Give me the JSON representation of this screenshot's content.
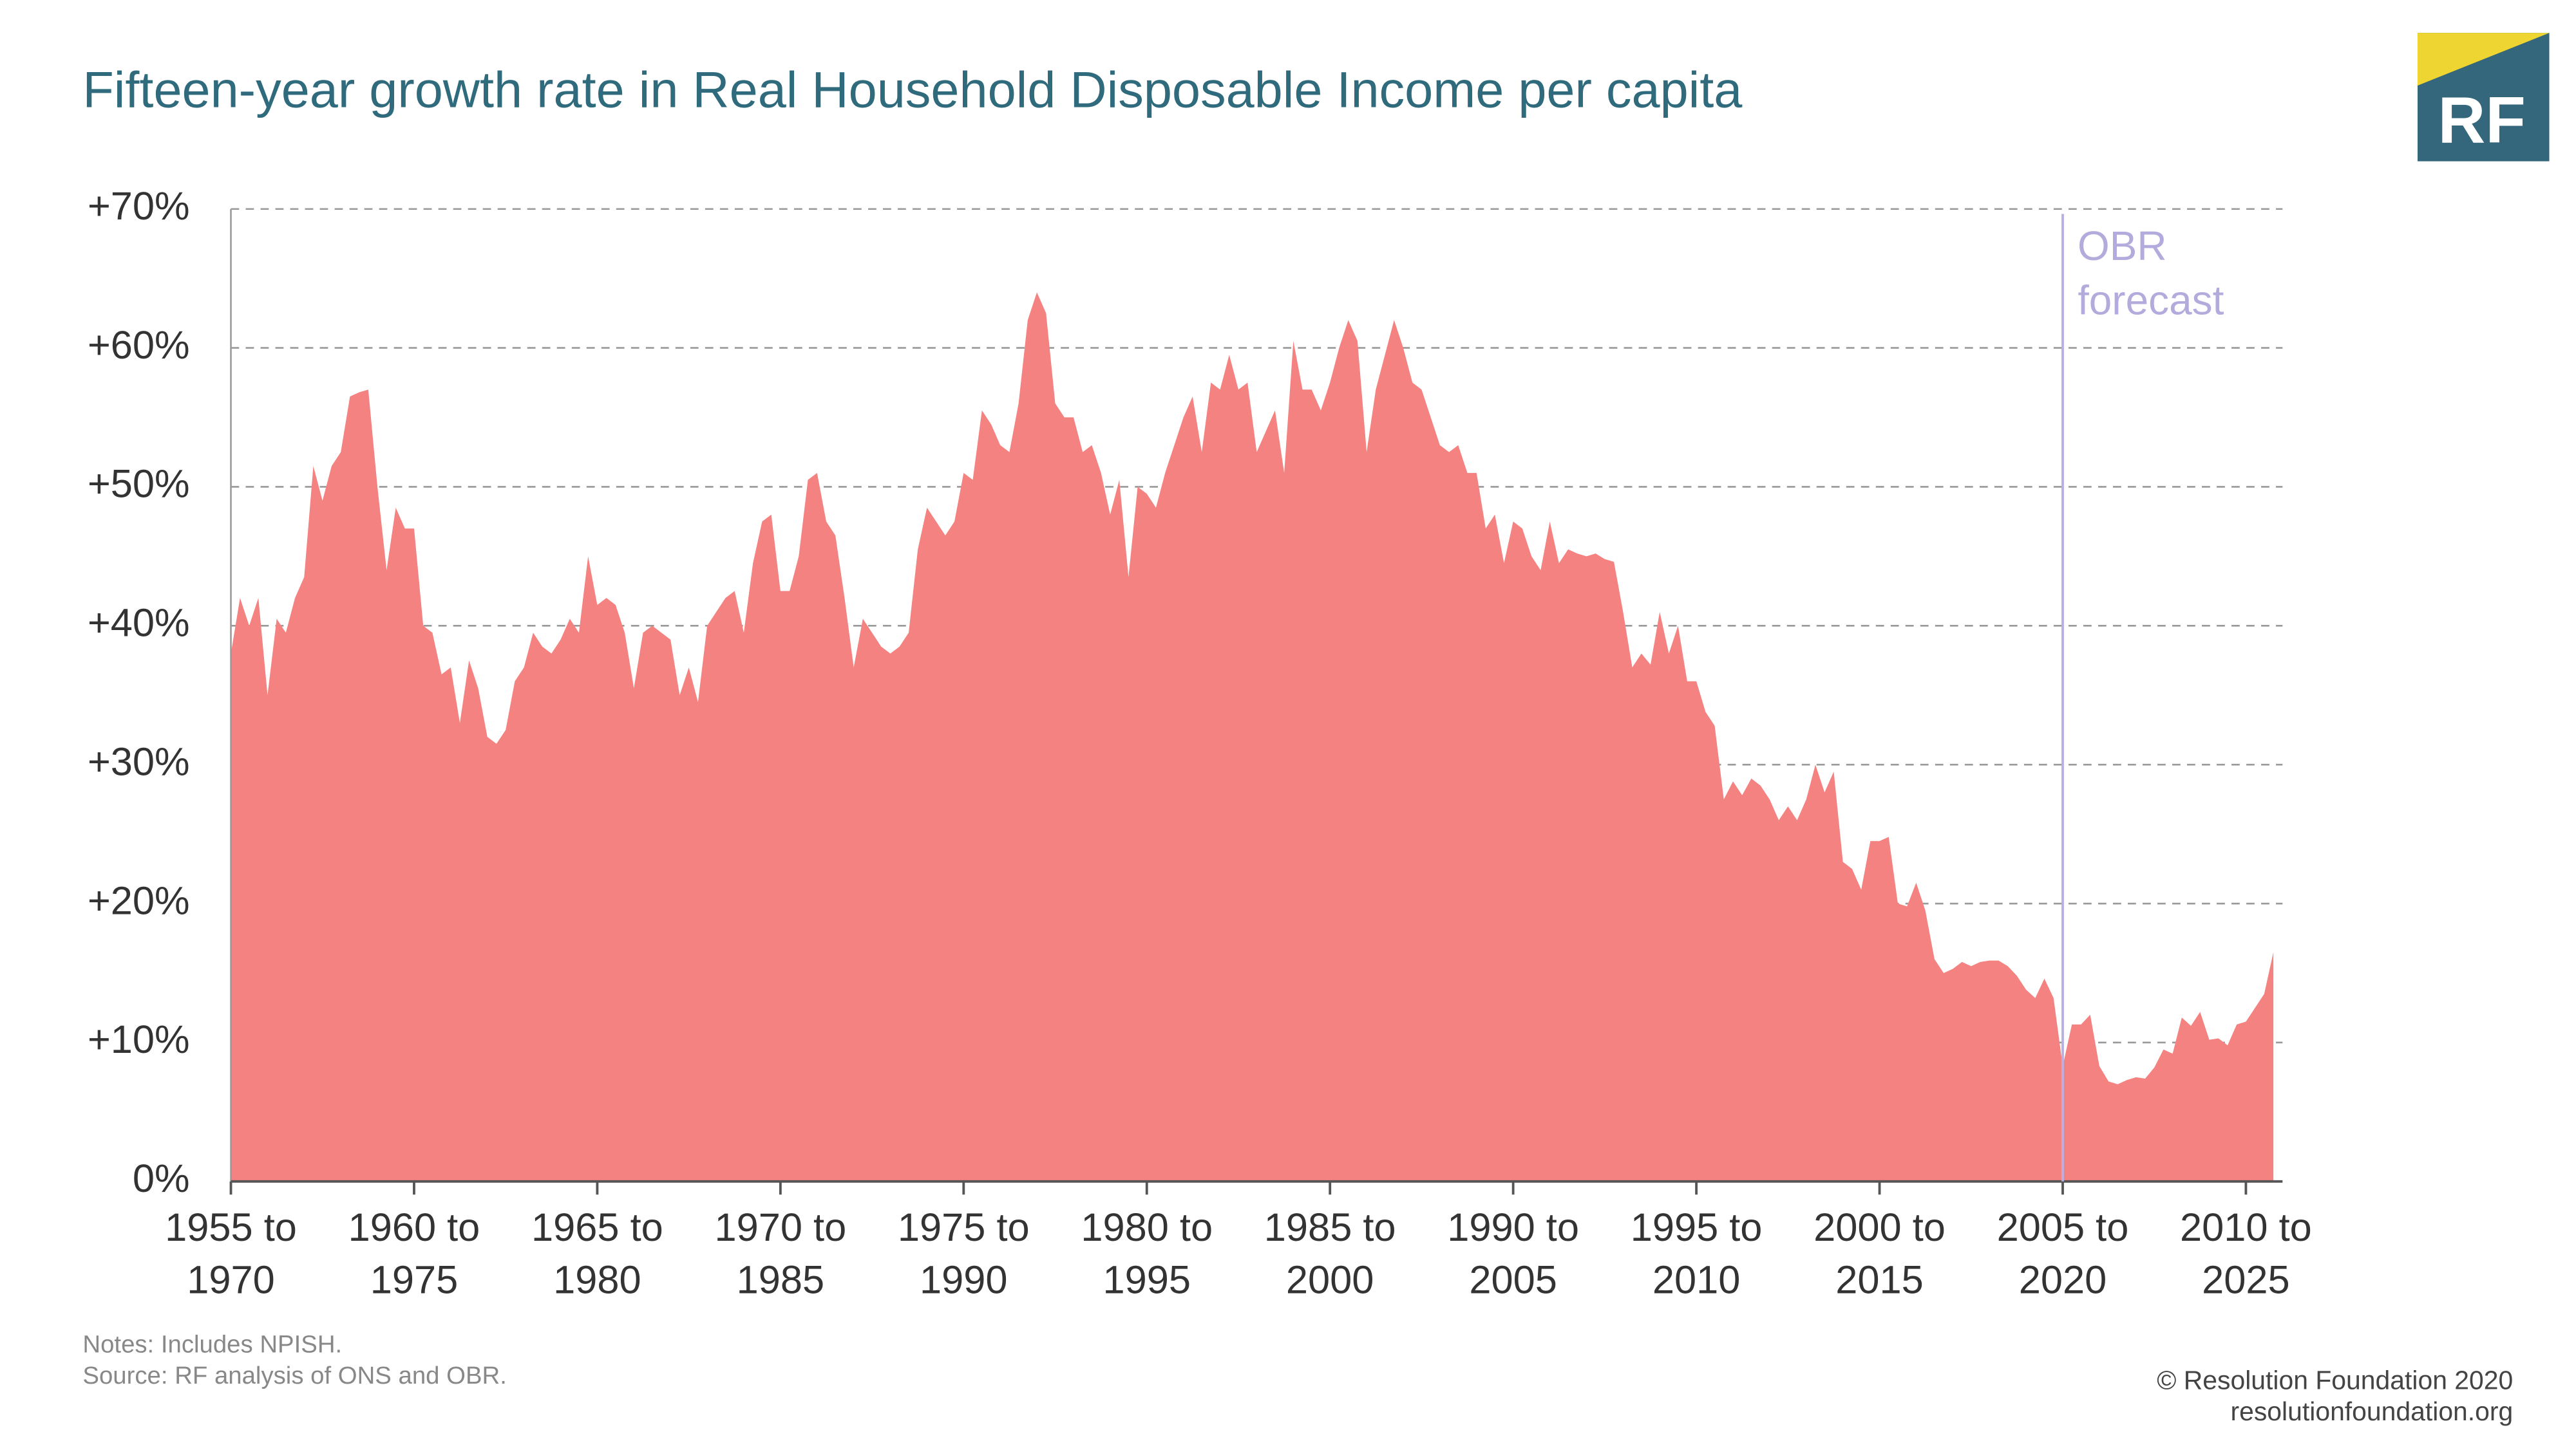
{
  "chart_data": {
    "type": "area",
    "title": "Fifteen-year growth rate in Real Household Disposable Income per capita",
    "notes": "Notes: Includes NPISH.",
    "source": "Source: RF analysis of ONS and OBR.",
    "copyright": "© Resolution Foundation 2020",
    "website": "resolutionfoundation.org",
    "logo": "RF",
    "annotation": "OBR forecast",
    "forecast_x": 2005,
    "color": "#f38280",
    "grid": true,
    "xlim": [
      1955,
      2011
    ],
    "ylim": [
      0,
      70
    ],
    "yticks": [
      {
        "value": 0,
        "label": "0%"
      },
      {
        "value": 10,
        "label": "+10%"
      },
      {
        "value": 20,
        "label": "+20%"
      },
      {
        "value": 30,
        "label": "+30%"
      },
      {
        "value": 40,
        "label": "+40%"
      },
      {
        "value": 50,
        "label": "+50%"
      },
      {
        "value": 60,
        "label": "+60%"
      },
      {
        "value": 70,
        "label": "+70%"
      }
    ],
    "xticks": [
      {
        "value": 1955,
        "label": "1955 to 1970"
      },
      {
        "value": 1960,
        "label": "1960 to 1975"
      },
      {
        "value": 1965,
        "label": "1965 to 1980"
      },
      {
        "value": 1970,
        "label": "1970 to 1985"
      },
      {
        "value": 1975,
        "label": "1975 to 1990"
      },
      {
        "value": 1980,
        "label": "1980 to 1995"
      },
      {
        "value": 1985,
        "label": "1985 to 2000"
      },
      {
        "value": 1990,
        "label": "1990 to 2005"
      },
      {
        "value": 1995,
        "label": "1995 to 2010"
      },
      {
        "value": 2000,
        "label": "2000 to 2015"
      },
      {
        "value": 2005,
        "label": "2005 to 2020"
      },
      {
        "value": 2010,
        "label": "2010 to 2025"
      }
    ],
    "x": [
      1955,
      1955.25,
      1955.5,
      1955.75,
      1956,
      1956.25,
      1956.5,
      1956.75,
      1957,
      1957.25,
      1957.5,
      1957.75,
      1958,
      1958.25,
      1958.5,
      1958.75,
      1959,
      1959.25,
      1959.5,
      1959.75,
      1960,
      1960.25,
      1960.5,
      1960.75,
      1961,
      1961.25,
      1961.5,
      1961.75,
      1962,
      1962.25,
      1962.5,
      1962.75,
      1963,
      1963.25,
      1963.5,
      1963.75,
      1964,
      1964.25,
      1964.5,
      1964.75,
      1965,
      1965.25,
      1965.5,
      1965.75,
      1966,
      1966.25,
      1966.5,
      1966.75,
      1967,
      1967.25,
      1967.5,
      1967.75,
      1968,
      1968.25,
      1968.5,
      1968.75,
      1969,
      1969.25,
      1969.5,
      1969.75,
      1970,
      1970.25,
      1970.5,
      1970.75,
      1971,
      1971.25,
      1971.5,
      1971.75,
      1972,
      1972.25,
      1972.5,
      1972.75,
      1973,
      1973.25,
      1973.5,
      1973.75,
      1974,
      1974.25,
      1974.5,
      1974.75,
      1975,
      1975.25,
      1975.5,
      1975.75,
      1976,
      1976.25,
      1976.5,
      1976.75,
      1977,
      1977.25,
      1977.5,
      1977.75,
      1978,
      1978.25,
      1978.5,
      1978.75,
      1979,
      1979.25,
      1979.5,
      1979.75,
      1980,
      1980.25,
      1980.5,
      1980.75,
      1981,
      1981.25,
      1981.5,
      1981.75,
      1982,
      1982.25,
      1982.5,
      1982.75,
      1983,
      1983.25,
      1983.5,
      1983.75,
      1984,
      1984.25,
      1984.5,
      1984.75,
      1985,
      1985.25,
      1985.5,
      1985.75,
      1986,
      1986.25,
      1986.5,
      1986.75,
      1987,
      1987.25,
      1987.5,
      1987.75,
      1988,
      1988.25,
      1988.5,
      1988.75,
      1989,
      1989.25,
      1989.5,
      1989.75,
      1990,
      1990.25,
      1990.5,
      1990.75,
      1991,
      1991.25,
      1991.5,
      1991.75,
      1992,
      1992.25,
      1992.5,
      1992.75,
      1993,
      1993.25,
      1993.5,
      1993.75,
      1994,
      1994.25,
      1994.5,
      1994.75,
      1995,
      1995.25,
      1995.5,
      1995.75,
      1996,
      1996.25,
      1996.5,
      1996.75,
      1997,
      1997.25,
      1997.5,
      1997.75,
      1998,
      1998.25,
      1998.5,
      1998.75,
      1999,
      1999.25,
      1999.5,
      1999.75,
      2000,
      2000.25,
      2000.5,
      2000.75,
      2001,
      2001.25,
      2001.5,
      2001.75,
      2002,
      2002.25,
      2002.5,
      2002.75,
      2003,
      2003.25,
      2003.5,
      2003.75,
      2004,
      2004.25,
      2004.5,
      2004.75,
      2005,
      2005.25,
      2005.5,
      2005.75,
      2006,
      2006.25,
      2006.5,
      2006.75,
      2007,
      2007.25,
      2007.5,
      2007.75,
      2008,
      2008.25,
      2008.5,
      2008.75,
      2009,
      2009.25,
      2009.5,
      2009.75,
      2010,
      2010.25,
      2010.5,
      2010.75
    ],
    "values": [
      38,
      42,
      40,
      42,
      35,
      40.5,
      39.5,
      42,
      43.5,
      51.5,
      49,
      51.5,
      52.5,
      56.5,
      56.8,
      57,
      50,
      44,
      48.5,
      47,
      47,
      40,
      39.5,
      36.5,
      37,
      33,
      37.5,
      35.5,
      32,
      31.5,
      32.5,
      36,
      37,
      39.5,
      38.5,
      38,
      39,
      40.5,
      39.5,
      45,
      41.5,
      42,
      41.5,
      39.5,
      35.5,
      39.5,
      40,
      39.5,
      39,
      35,
      37,
      34.5,
      40,
      41,
      42,
      42.5,
      39.5,
      44.5,
      47.5,
      48,
      42.5,
      42.5,
      45,
      50.5,
      51,
      47.5,
      46.5,
      42,
      37,
      40.5,
      39.5,
      38.5,
      38,
      38.5,
      39.5,
      45.5,
      48.5,
      47.5,
      46.5,
      47.5,
      51,
      50.5,
      55.5,
      54.5,
      53,
      52.5,
      56,
      62,
      64,
      62.5,
      56,
      55,
      55,
      52.5,
      53,
      51,
      48,
      50.5,
      43.5,
      50,
      49.5,
      48.5,
      51,
      53,
      55,
      56.5,
      52.5,
      57.5,
      57,
      59.5,
      57,
      57.5,
      52.5,
      54,
      55.5,
      51,
      60.5,
      57,
      57,
      55.5,
      57.5,
      60,
      62,
      60.5,
      52.5,
      57,
      59.5,
      62,
      60,
      57.5,
      57,
      55,
      53,
      52.5,
      53,
      51,
      51,
      47,
      48,
      44.5,
      47.5,
      47,
      45,
      44,
      47.5,
      44.5,
      45.5,
      45.2,
      45,
      45.2,
      44.8,
      44.6,
      41,
      37,
      38,
      37.2,
      41,
      38,
      40,
      36,
      36,
      33.8,
      32.8,
      27.5,
      28.8,
      27.8,
      29,
      28.5,
      27.5,
      26,
      27,
      26,
      27.5,
      30,
      28,
      29.5,
      23,
      22.5,
      21,
      24.5,
      24.5,
      24.8,
      20,
      19.8,
      21.5,
      19.5,
      16,
      15,
      15.3,
      15.8,
      15.5,
      15.8,
      15.9,
      15.9,
      15.5,
      14.8,
      13.8,
      13.2,
      14.6,
      13.2,
      8.3,
      11.3,
      11.3,
      12,
      8.3,
      7.2,
      7,
      7.3,
      7.5,
      7.4,
      8.2,
      9.5,
      9.2,
      11.8,
      11.2,
      12.2,
      10.2,
      10.3,
      9.8,
      11.3,
      11.5,
      12.5,
      13.5,
      16.5
    ]
  }
}
